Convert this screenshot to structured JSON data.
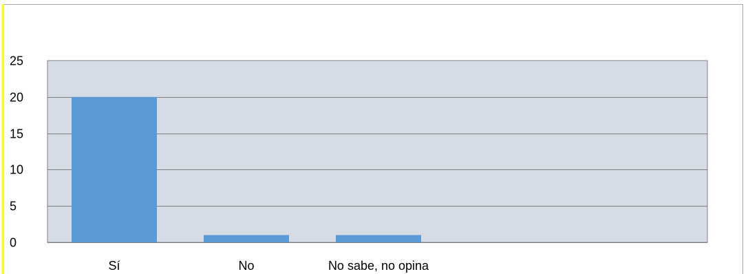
{
  "chart_data": {
    "type": "bar",
    "categories": [
      "Sí",
      "No",
      "No sabe, no opina"
    ],
    "values": [
      20,
      1,
      1
    ],
    "ylim": [
      0,
      25
    ],
    "yticks": [
      0,
      5,
      10,
      15,
      20,
      25
    ],
    "grid": true,
    "legend": "none"
  },
  "colors": {
    "bar": "#5b9bd5",
    "plot_background": "#d6dce5",
    "gridline": "#7f7f7f",
    "frame_accent": "#ffff00"
  }
}
